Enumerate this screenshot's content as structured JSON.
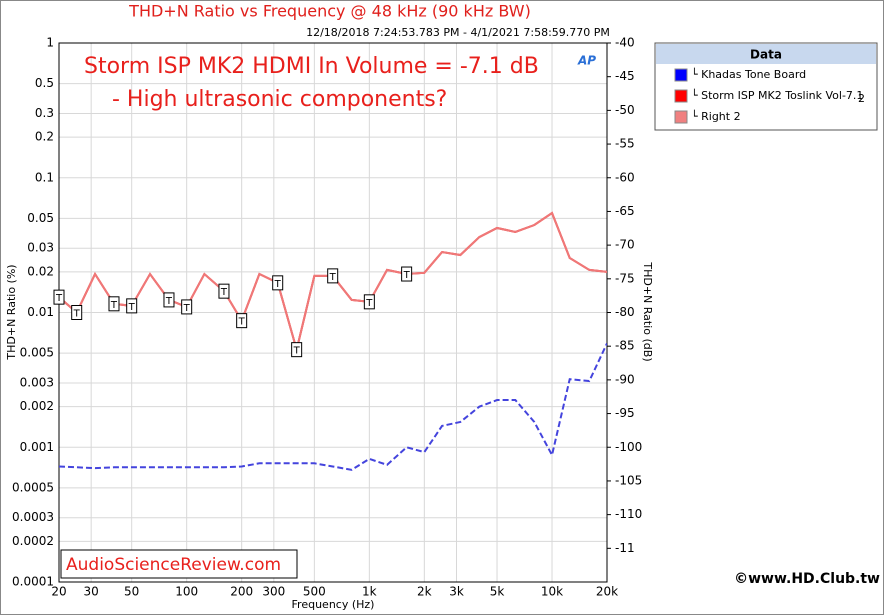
{
  "chart_data": {
    "type": "line",
    "title": "THD+N Ratio vs Frequency @ 48 kHz (90 kHz BW)",
    "subtitle": "12/18/2018 7:24:53.783 PM - 4/1/2021 7:58:59.770 PM",
    "annotations": [
      "Storm ISP MK2 HDMI In Volume = -7.1 dB",
      "- High ultrasonic components?"
    ],
    "source": "AudioScienceReview.com",
    "watermark": "©www.HD.Club.tw",
    "logo": "AP",
    "x_label": "Frequency (Hz)",
    "y_label": "THD+N Ratio (%)",
    "y2_label": "THD+N Ratio (dB)",
    "legend_title": "Data",
    "x_log": true,
    "y_log": true,
    "grid": true,
    "flag_label": "T",
    "x": [
      20,
      25,
      31.5,
      40,
      50,
      63,
      80,
      100,
      125,
      160,
      200,
      250,
      315,
      400,
      500,
      630,
      800,
      1000,
      1250,
      1600,
      2000,
      2500,
      3150,
      4000,
      5000,
      6300,
      8000,
      10000,
      12500,
      16000,
      20000
    ],
    "series": [
      {
        "name": "└ Khadas Tone Board",
        "color": "#0000ff",
        "line_color": "#4444dd",
        "dashed": true,
        "values": [
          0.00072,
          0.00071,
          0.0007,
          0.00071,
          0.00071,
          0.00071,
          0.00071,
          0.00071,
          0.00071,
          0.00071,
          0.00072,
          0.00076,
          0.00076,
          0.00076,
          0.00076,
          0.00072,
          0.00068,
          0.00082,
          0.00074,
          0.001,
          0.00092,
          0.00144,
          0.00154,
          0.002,
          0.00224,
          0.00224,
          0.00154,
          0.000875,
          0.0032,
          0.0031,
          0.0059
        ]
      },
      {
        "name": "└ Storm ISP MK2 Toslink Vol-7.1",
        "suffix": "2",
        "color": "#ff0000",
        "line_color": "#e02020",
        "dashed": false,
        "values": [
          0.013,
          0.01,
          0.0193,
          0.0116,
          0.0112,
          0.0193,
          0.0124,
          0.011,
          0.0193,
          0.0144,
          0.0087,
          0.0193,
          0.0166,
          0.0053,
          0.0187,
          0.0187,
          0.0124,
          0.012,
          0.0207,
          0.0193,
          0.0197,
          0.0281,
          0.0267,
          0.0363,
          0.0424,
          0.0396,
          0.0446,
          0.0547,
          0.0254,
          0.0207,
          0.02
        ]
      },
      {
        "name": "└ Right 2",
        "color": "#f08080",
        "line_color": "#f07878",
        "dashed": false,
        "flags": [
          true,
          true,
          false,
          true,
          true,
          false,
          true,
          true,
          false,
          true,
          true,
          false,
          true,
          true,
          false,
          true,
          false,
          true,
          false,
          true,
          false,
          false,
          false,
          false,
          false,
          false,
          false,
          false,
          false,
          false,
          false
        ],
        "values": [
          0.013,
          0.01,
          0.0193,
          0.0116,
          0.0112,
          0.0193,
          0.0124,
          0.011,
          0.0193,
          0.0144,
          0.0087,
          0.0193,
          0.0166,
          0.0053,
          0.0187,
          0.0187,
          0.0124,
          0.012,
          0.0207,
          0.0193,
          0.0197,
          0.0281,
          0.0267,
          0.0363,
          0.0424,
          0.0396,
          0.0446,
          0.0547,
          0.0254,
          0.0207,
          0.02
        ]
      }
    ],
    "xlim": [
      20,
      20000
    ],
    "xticks": [
      20,
      30,
      50,
      100,
      200,
      300,
      500,
      {
        "value": 1000,
        "label": "1k"
      },
      {
        "value": 2000,
        "label": "2k"
      },
      {
        "value": 3000,
        "label": "3k"
      },
      {
        "value": 5000,
        "label": "5k"
      },
      {
        "value": 10000,
        "label": "10k"
      },
      {
        "value": 20000,
        "label": "20k"
      }
    ],
    "ylim": [
      0.0001,
      1
    ],
    "yticks": [
      1,
      0.5,
      0.3,
      0.2,
      0.1,
      0.05,
      0.03,
      0.02,
      0.01,
      0.005,
      0.003,
      0.002,
      0.001,
      0.0005,
      0.0003,
      0.0002,
      0.0001
    ],
    "y2lim": [
      -120,
      -40
    ],
    "y2ticks": [
      -40,
      -45,
      -50,
      -55,
      -60,
      -65,
      -70,
      -75,
      -80,
      -85,
      -90,
      -95,
      -100,
      -105,
      -110,
      {
        "value": -115,
        "label": "-11"
      }
    ]
  }
}
